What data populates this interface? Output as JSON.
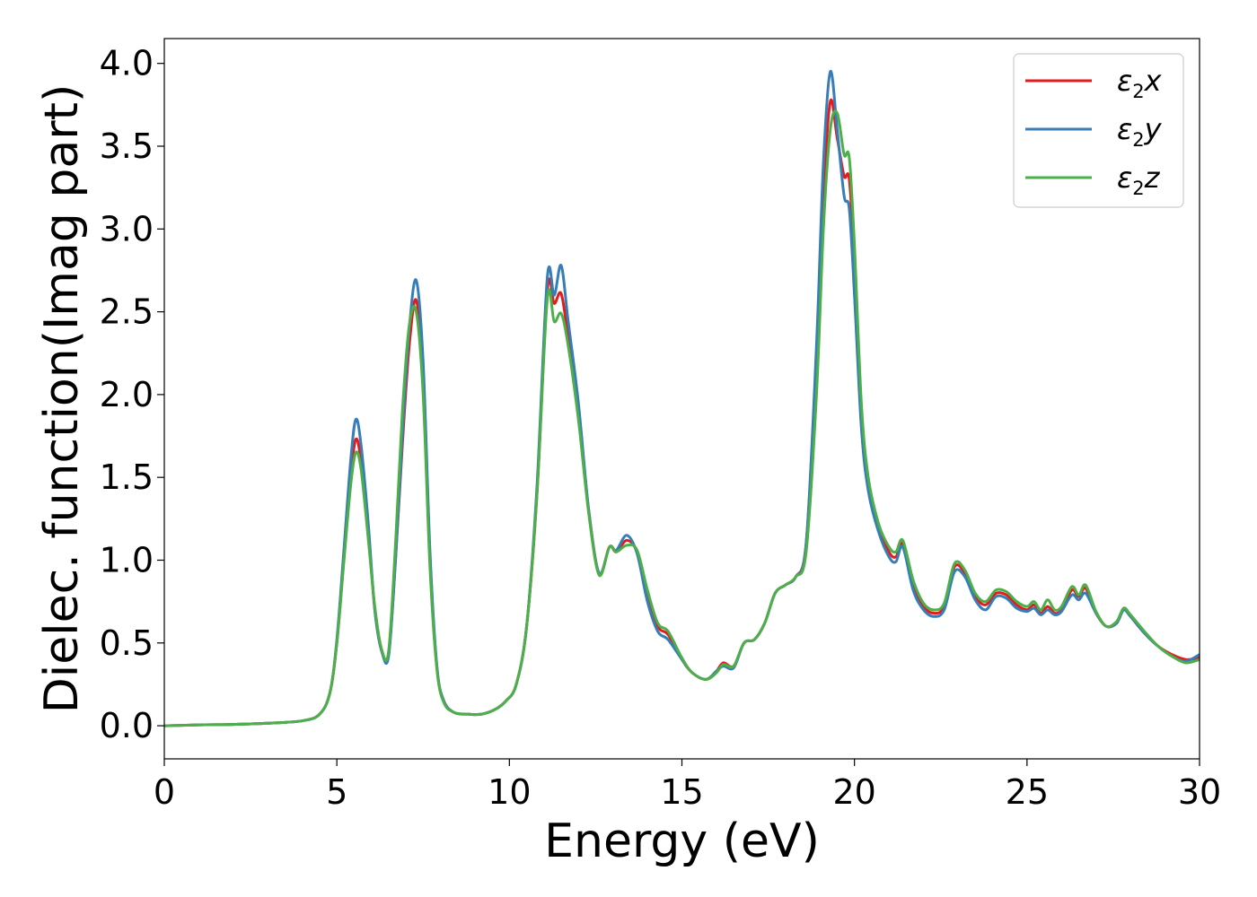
{
  "chart_data": {
    "type": "line",
    "xlabel": "Energy (eV)",
    "ylabel": "Dielec. function(Imag part)",
    "xlim": [
      0,
      30
    ],
    "ylim": [
      -0.2,
      4.15
    ],
    "xticks": [
      0,
      5,
      10,
      15,
      20,
      25,
      30
    ],
    "xtick_labels": [
      "0",
      "5",
      "10",
      "15",
      "20",
      "25",
      "30"
    ],
    "yticks": [
      0.0,
      0.5,
      1.0,
      1.5,
      2.0,
      2.5,
      3.0,
      3.5,
      4.0
    ],
    "ytick_labels": [
      "0.0",
      "0.5",
      "1.0",
      "1.5",
      "2.0",
      "2.5",
      "3.0",
      "3.5",
      "4.0"
    ],
    "grid": false,
    "legend_position": "top-right",
    "x": [
      0,
      1,
      2,
      3,
      4,
      4.5,
      4.8,
      5.0,
      5.2,
      5.4,
      5.55,
      5.7,
      5.9,
      6.1,
      6.3,
      6.5,
      6.7,
      6.9,
      7.1,
      7.3,
      7.5,
      7.7,
      7.9,
      8.1,
      8.4,
      8.8,
      9.2,
      9.6,
      9.9,
      10.2,
      10.5,
      10.8,
      11.1,
      11.3,
      11.5,
      11.7,
      12.0,
      12.3,
      12.6,
      12.9,
      13.1,
      13.4,
      13.7,
      14.0,
      14.3,
      14.6,
      15.0,
      15.3,
      15.7,
      16.0,
      16.2,
      16.5,
      16.8,
      17.1,
      17.4,
      17.7,
      18.0,
      18.3,
      18.6,
      18.9,
      19.1,
      19.3,
      19.5,
      19.7,
      19.85,
      20.0,
      20.2,
      20.4,
      20.7,
      21.0,
      21.2,
      21.4,
      21.7,
      22.0,
      22.3,
      22.6,
      22.9,
      23.2,
      23.5,
      23.8,
      24.1,
      24.4,
      24.7,
      25.0,
      25.2,
      25.4,
      25.6,
      25.8,
      26.0,
      26.3,
      26.5,
      26.7,
      27.0,
      27.3,
      27.6,
      27.8,
      28.0,
      28.4,
      28.8,
      29.2,
      29.6,
      30.0
    ],
    "series": [
      {
        "name": "ε2x",
        "color": "#e41a1c",
        "values": [
          0.0,
          0.005,
          0.008,
          0.015,
          0.03,
          0.07,
          0.2,
          0.5,
          1.0,
          1.5,
          1.73,
          1.6,
          1.2,
          0.7,
          0.45,
          0.44,
          1.0,
          1.7,
          2.3,
          2.57,
          2.1,
          1.0,
          0.35,
          0.15,
          0.08,
          0.07,
          0.07,
          0.1,
          0.15,
          0.25,
          0.6,
          1.4,
          2.63,
          2.55,
          2.61,
          2.35,
          1.9,
          1.3,
          0.92,
          1.08,
          1.05,
          1.12,
          1.05,
          0.8,
          0.6,
          0.55,
          0.4,
          0.32,
          0.28,
          0.33,
          0.38,
          0.36,
          0.5,
          0.52,
          0.62,
          0.8,
          0.85,
          0.9,
          1.1,
          2.2,
          3.2,
          3.77,
          3.55,
          3.32,
          3.3,
          2.8,
          1.9,
          1.47,
          1.2,
          1.05,
          1.02,
          1.1,
          0.85,
          0.72,
          0.68,
          0.72,
          0.96,
          0.92,
          0.78,
          0.73,
          0.8,
          0.79,
          0.73,
          0.7,
          0.73,
          0.68,
          0.72,
          0.68,
          0.7,
          0.82,
          0.78,
          0.83,
          0.68,
          0.6,
          0.62,
          0.7,
          0.66,
          0.56,
          0.48,
          0.43,
          0.4,
          0.41
        ]
      },
      {
        "name": "ε2y",
        "color": "#377eb8",
        "values": [
          0.0,
          0.005,
          0.008,
          0.015,
          0.03,
          0.07,
          0.2,
          0.52,
          1.05,
          1.6,
          1.85,
          1.7,
          1.25,
          0.7,
          0.45,
          0.42,
          1.0,
          1.75,
          2.4,
          2.69,
          2.2,
          1.05,
          0.36,
          0.15,
          0.08,
          0.07,
          0.07,
          0.1,
          0.15,
          0.25,
          0.6,
          1.45,
          2.71,
          2.6,
          2.78,
          2.45,
          1.95,
          1.3,
          0.92,
          1.08,
          1.06,
          1.15,
          1.04,
          0.75,
          0.57,
          0.52,
          0.4,
          0.32,
          0.28,
          0.33,
          0.36,
          0.35,
          0.5,
          0.52,
          0.62,
          0.8,
          0.85,
          0.9,
          1.1,
          2.3,
          3.4,
          3.95,
          3.6,
          3.2,
          3.12,
          2.6,
          1.8,
          1.42,
          1.17,
          1.02,
          0.99,
          1.08,
          0.82,
          0.7,
          0.66,
          0.7,
          0.93,
          0.9,
          0.76,
          0.7,
          0.78,
          0.77,
          0.71,
          0.69,
          0.71,
          0.67,
          0.7,
          0.67,
          0.69,
          0.79,
          0.76,
          0.8,
          0.68,
          0.6,
          0.62,
          0.7,
          0.66,
          0.56,
          0.48,
          0.42,
          0.39,
          0.43
        ]
      },
      {
        "name": "ε2z",
        "color": "#4daf4a",
        "values": [
          0.0,
          0.005,
          0.008,
          0.015,
          0.03,
          0.07,
          0.2,
          0.5,
          0.98,
          1.45,
          1.65,
          1.55,
          1.15,
          0.72,
          0.46,
          0.45,
          1.1,
          1.9,
          2.42,
          2.5,
          2.0,
          0.95,
          0.34,
          0.14,
          0.08,
          0.07,
          0.07,
          0.1,
          0.15,
          0.25,
          0.6,
          1.4,
          2.58,
          2.44,
          2.49,
          2.3,
          1.85,
          1.28,
          0.91,
          1.08,
          1.05,
          1.09,
          1.06,
          0.82,
          0.62,
          0.57,
          0.41,
          0.32,
          0.28,
          0.32,
          0.37,
          0.36,
          0.5,
          0.52,
          0.62,
          0.8,
          0.85,
          0.9,
          1.05,
          2.0,
          3.0,
          3.6,
          3.7,
          3.45,
          3.43,
          2.9,
          1.95,
          1.5,
          1.22,
          1.08,
          1.05,
          1.12,
          0.88,
          0.74,
          0.7,
          0.74,
          0.98,
          0.94,
          0.8,
          0.75,
          0.82,
          0.81,
          0.75,
          0.72,
          0.75,
          0.7,
          0.76,
          0.7,
          0.72,
          0.84,
          0.79,
          0.85,
          0.69,
          0.6,
          0.63,
          0.71,
          0.67,
          0.57,
          0.48,
          0.42,
          0.38,
          0.4
        ]
      }
    ]
  }
}
